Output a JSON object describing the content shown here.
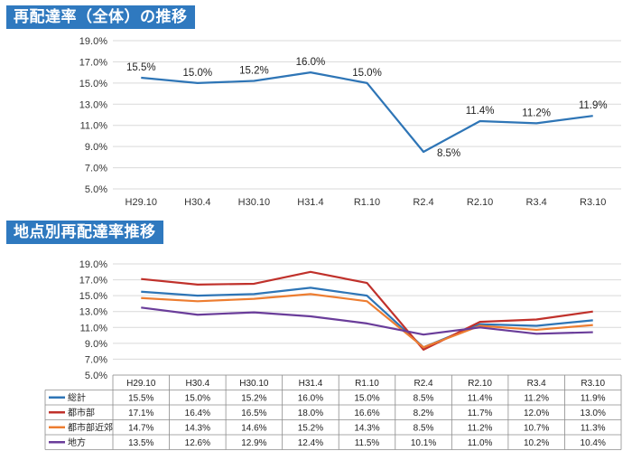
{
  "sections": {
    "chart1_title": "再配達率（全体）の推移",
    "chart2_title": "地点別再配達率推移"
  },
  "colors": {
    "banner": "#2f79bf",
    "総計": "#2e75b6",
    "都市部": "#c0312b",
    "都市部近郊": "#ed7d31",
    "地方": "#6a3d9a"
  },
  "chart_data": [
    {
      "type": "line",
      "title": "再配達率（全体）の推移",
      "categories": [
        "H29.10",
        "H30.4",
        "H30.10",
        "H31.4",
        "R1.10",
        "R2.4",
        "R2.10",
        "R3.4",
        "R3.10"
      ],
      "series": [
        {
          "values": [
            15.5,
            15.0,
            15.2,
            16.0,
            15.0,
            8.5,
            11.4,
            11.2,
            11.9
          ]
        }
      ],
      "data_labels": [
        "15.5%",
        "15.0%",
        "15.2%",
        "16.0%",
        "15.0%",
        "8.5%",
        "11.4%",
        "11.2%",
        "11.9%"
      ],
      "ylim": [
        5.0,
        19.0
      ],
      "yticks": [
        "5.0%",
        "7.0%",
        "9.0%",
        "11.0%",
        "13.0%",
        "15.0%",
        "17.0%",
        "19.0%"
      ],
      "grid": true
    },
    {
      "type": "line",
      "title": "地点別再配達率推移",
      "categories": [
        "H29.10",
        "H30.4",
        "H30.10",
        "H31.4",
        "R1.10",
        "R2.4",
        "R2.10",
        "R3.4",
        "R3.10"
      ],
      "series": [
        {
          "name": "総計",
          "values": [
            15.5,
            15.0,
            15.2,
            16.0,
            15.0,
            8.5,
            11.4,
            11.2,
            11.9
          ],
          "labels": [
            "15.5%",
            "15.0%",
            "15.2%",
            "16.0%",
            "15.0%",
            "8.5%",
            "11.4%",
            "11.2%",
            "11.9%"
          ]
        },
        {
          "name": "都市部",
          "values": [
            17.1,
            16.4,
            16.5,
            18.0,
            16.6,
            8.2,
            11.7,
            12.0,
            13.0
          ],
          "labels": [
            "17.1%",
            "16.4%",
            "16.5%",
            "18.0%",
            "16.6%",
            "8.2%",
            "11.7%",
            "12.0%",
            "13.0%"
          ]
        },
        {
          "name": "都市部近郊",
          "values": [
            14.7,
            14.3,
            14.6,
            15.2,
            14.3,
            8.5,
            11.2,
            10.7,
            11.3
          ],
          "labels": [
            "14.7%",
            "14.3%",
            "14.6%",
            "15.2%",
            "14.3%",
            "8.5%",
            "11.2%",
            "10.7%",
            "11.3%"
          ]
        },
        {
          "name": "地方",
          "values": [
            13.5,
            12.6,
            12.9,
            12.4,
            11.5,
            10.1,
            11.0,
            10.2,
            10.4
          ],
          "labels": [
            "13.5%",
            "12.6%",
            "12.9%",
            "12.4%",
            "11.5%",
            "10.1%",
            "11.0%",
            "10.2%",
            "10.4%"
          ]
        }
      ],
      "ylim": [
        5.0,
        19.0
      ],
      "yticks": [
        "5.0%",
        "7.0%",
        "9.0%",
        "11.0%",
        "13.0%",
        "15.0%",
        "17.0%",
        "19.0%"
      ],
      "grid": true,
      "data_table": true
    }
  ]
}
